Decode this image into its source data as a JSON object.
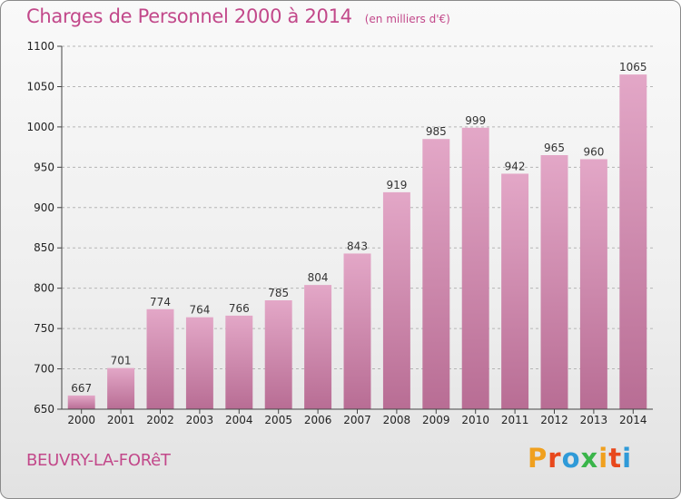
{
  "header": {
    "title": "Charges de Personnel 2000 à 2014",
    "subtitle": "(en milliers d'€)"
  },
  "footer": {
    "town": "BEUVRY-LA-FORêT",
    "logo": "Proxiti",
    "logo_colors": [
      "#f0a01e",
      "#e8481c",
      "#2f9ad8",
      "#3ab54a",
      "#f0a01e",
      "#e8481c",
      "#2f9ad8"
    ]
  },
  "chart_data": {
    "type": "bar",
    "title": "Charges de Personnel 2000 à 2014",
    "subtitle": "(en milliers d'€)",
    "xlabel": "",
    "ylabel": "",
    "categories": [
      "2000",
      "2001",
      "2002",
      "2003",
      "2004",
      "2005",
      "2006",
      "2007",
      "2008",
      "2009",
      "2010",
      "2011",
      "2012",
      "2013",
      "2014"
    ],
    "values": [
      667,
      701,
      774,
      764,
      766,
      785,
      804,
      843,
      919,
      985,
      999,
      942,
      965,
      960,
      1065
    ],
    "ylim": [
      650,
      1100
    ],
    "yticks": [
      650,
      700,
      750,
      800,
      850,
      900,
      950,
      1000,
      1050,
      1100
    ],
    "grid": "horizontal dashed",
    "bar_color": "#d77fab"
  }
}
